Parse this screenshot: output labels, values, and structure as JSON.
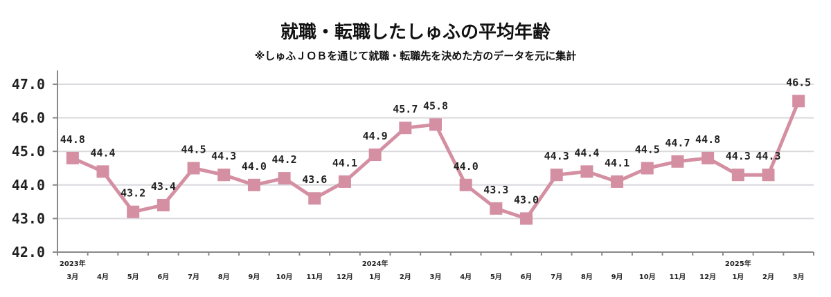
{
  "chart_data": {
    "type": "line",
    "title": "就職・転職したしゅふの平均年齢",
    "subtitle": "※しゅふＪＯＢを通じて就職・転職先を決めた方のデータを元に集計",
    "xlabel": "",
    "ylabel": "",
    "ylim": [
      42.0,
      47.0
    ],
    "yticks": [
      "42.0",
      "43.0",
      "44.0",
      "45.0",
      "46.0",
      "47.0"
    ],
    "grid": true,
    "line_color": "#d48fa2",
    "marker": "square",
    "year_labels": [
      {
        "index": 0,
        "label": "2023年"
      },
      {
        "index": 10,
        "label": "2024年"
      },
      {
        "index": 22,
        "label": "2025年"
      }
    ],
    "categories": [
      "3月",
      "4月",
      "5月",
      "6月",
      "7月",
      "8月",
      "9月",
      "10月",
      "11月",
      "12月",
      "1月",
      "2月",
      "3月",
      "4月",
      "5月",
      "6月",
      "7月",
      "8月",
      "9月",
      "10月",
      "11月",
      "12月",
      "1月",
      "2月",
      "3月"
    ],
    "values": [
      44.8,
      44.4,
      43.2,
      43.4,
      44.5,
      44.3,
      44.0,
      44.2,
      43.6,
      44.1,
      44.9,
      45.7,
      45.8,
      44.0,
      43.3,
      43.0,
      44.3,
      44.4,
      44.1,
      44.5,
      44.7,
      44.8,
      44.3,
      44.3,
      46.5
    ],
    "data_labels": [
      "44.8",
      "44.4",
      "43.2",
      "43.4",
      "44.5",
      "44.3",
      "44.0",
      "44.2",
      "43.6",
      "44.1",
      "44.9",
      "45.7",
      "45.8",
      "44.0",
      "43.3",
      "43.0",
      "44.3",
      "44.4",
      "44.1",
      "44.5",
      "44.7",
      "44.8",
      "44.3",
      "44.3",
      "46.5"
    ]
  }
}
